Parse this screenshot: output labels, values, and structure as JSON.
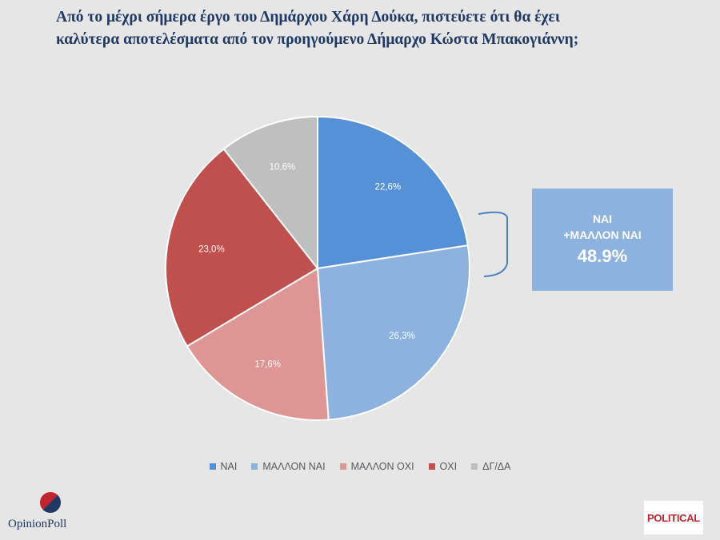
{
  "title_lines": [
    "Από το μέχρι σήμερα έργο του Δημάρχου Χάρη Δούκα, πιστεύετε ότι θα έχει",
    "καλύτερα αποτελέσματα από τον προηγούμενο Δήμαρχο Κώστα Μπακογιάννη;"
  ],
  "chart_data": {
    "type": "pie",
    "title": "Από το μέχρι σήμερα έργο του Δημάρχου Χάρη Δούκα, πιστεύετε ότι θα έχει καλύτερα αποτελέσματα από τον προηγούμενο Δήμαρχο Κώστα Μπακογιάννη;",
    "categories": [
      "ΝΑΙ",
      "ΜΑΛΛΟΝ ΝΑΙ",
      "ΜΑΛΛΟΝ ΟΧΙ",
      "ΟΧΙ",
      "ΔΓ/ΔΑ"
    ],
    "values": [
      22.6,
      26.3,
      17.6,
      23.0,
      10.6
    ],
    "labels": [
      "22,6%",
      "26,3%",
      "17,6%",
      "23,0%",
      "10,6%"
    ],
    "colors": [
      "#5690d6",
      "#8eb2e0",
      "#dd9694",
      "#c0504d",
      "#bfbfbf"
    ],
    "legend_position": "bottom"
  },
  "callout": {
    "line1": "ΝΑΙ",
    "line2": "+ΜΑΛΛΟΝ ΝΑΙ",
    "value": "48.9%"
  },
  "logos": {
    "left": "OpinionPoll",
    "right": "POLITICAL"
  }
}
